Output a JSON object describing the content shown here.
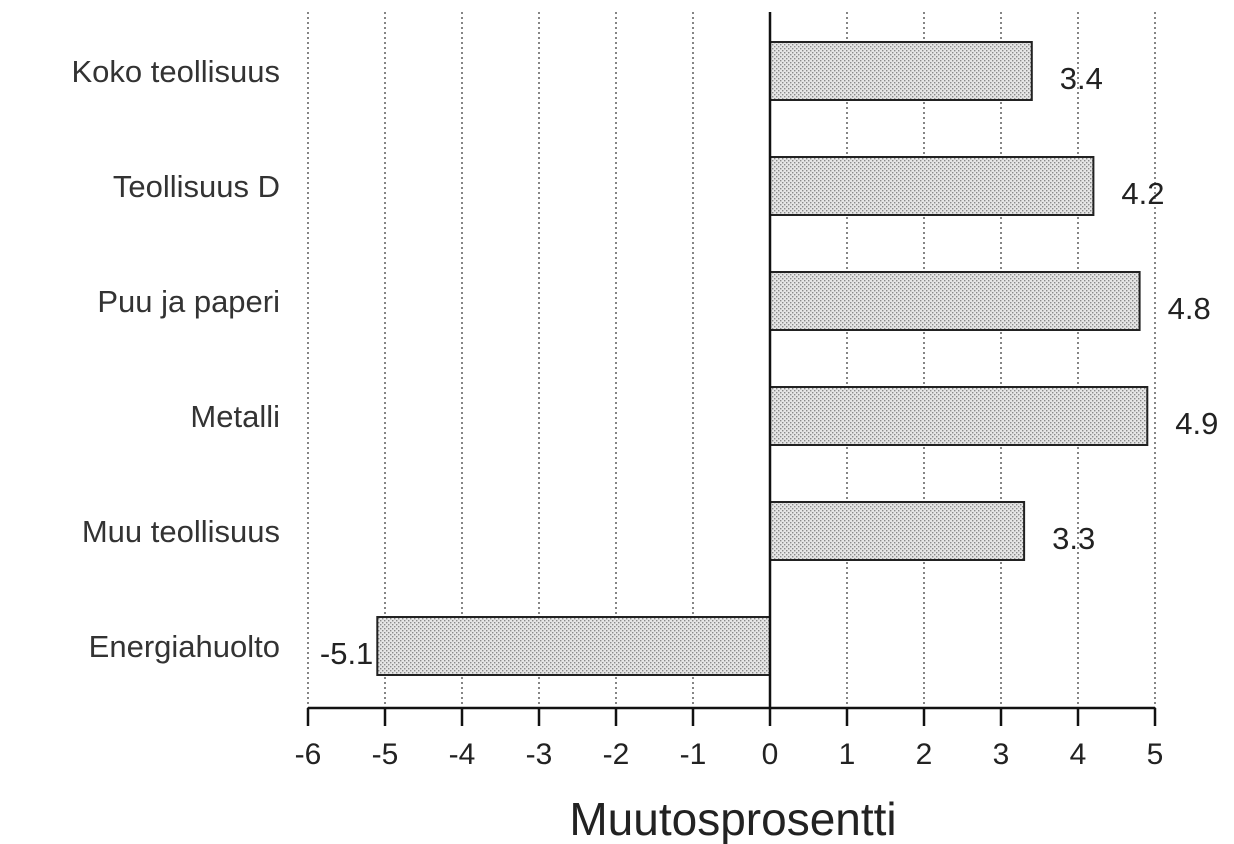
{
  "chart_data": {
    "type": "bar",
    "orientation": "horizontal",
    "categories": [
      "Koko teollisuus",
      "Teollisuus D",
      "Puu ja paperi",
      "Metalli",
      "Muu teollisuus",
      "Energiahuolto"
    ],
    "values": [
      3.4,
      4.2,
      4.8,
      4.9,
      3.3,
      -5.1
    ],
    "data_labels": [
      "3.4",
      "4.2",
      "4.8",
      "4.9",
      "3.3",
      "-5.1"
    ],
    "xlabel": "Muutosprosentti",
    "xlim": [
      -6,
      5
    ],
    "xticks": [
      "-6",
      "-5",
      "-4",
      "-3",
      "-2",
      "-1",
      "0",
      "1",
      "2",
      "3",
      "4",
      "5"
    ],
    "grid": "vertical dotted",
    "bar_fill": "light grey stipple",
    "colors": {
      "bar_fill": "#dcdcdc",
      "bar_stroke": "#222222",
      "text": "#333333"
    }
  }
}
